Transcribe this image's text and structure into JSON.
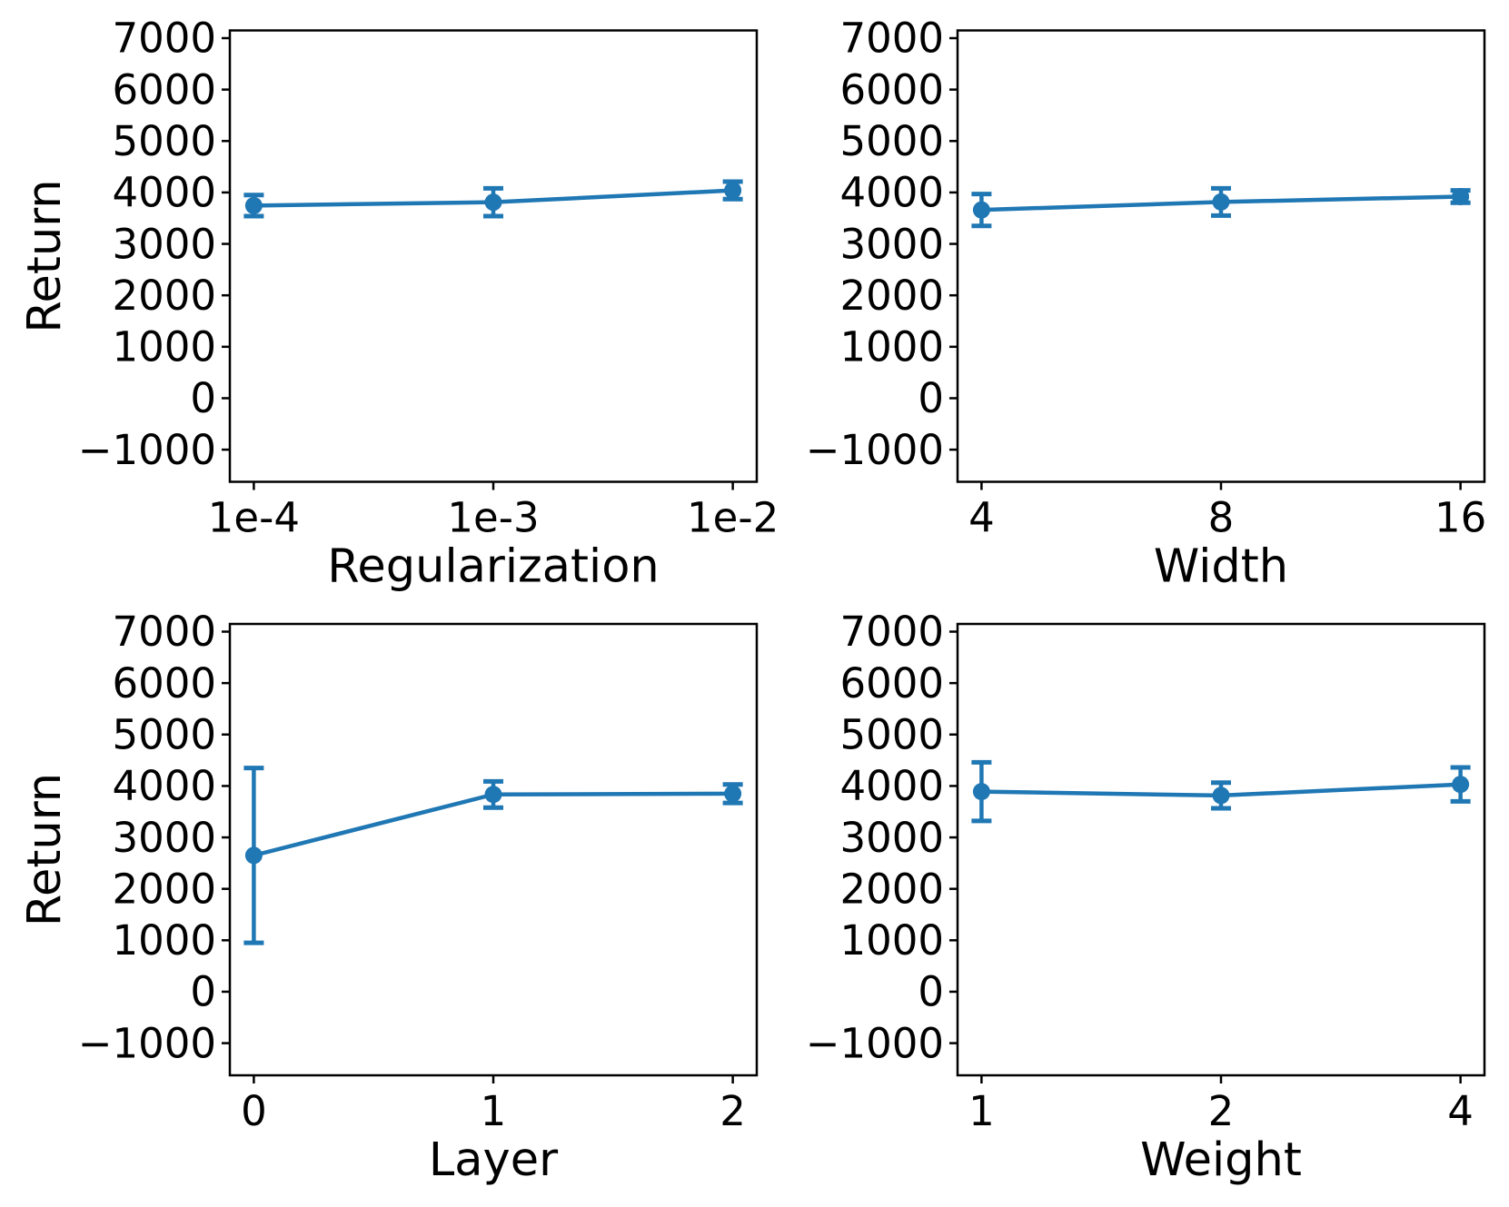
{
  "figure": {
    "background": "#ffffff",
    "accent_color": "#1f77b4",
    "text_color": "#000000",
    "ylabel": "Return"
  },
  "chart_data": [
    {
      "type": "line",
      "title": "",
      "xlabel": "Regularization",
      "ylabel": "Return",
      "categories": [
        "1e-4",
        "1e-3",
        "1e-2"
      ],
      "values": [
        3745,
        3810,
        4040
      ],
      "yerr": [
        205,
        270,
        170
      ],
      "yticks": [
        -1000,
        0,
        1000,
        2000,
        3000,
        4000,
        5000,
        6000,
        7000
      ],
      "ylim": [
        -1625,
        7150
      ],
      "grid": false,
      "legend": null,
      "line_color": "#1f77b4",
      "marker": "circle"
    },
    {
      "type": "line",
      "title": "",
      "xlabel": "Width",
      "ylabel": "",
      "categories": [
        "4",
        "8",
        "16"
      ],
      "values": [
        3660,
        3815,
        3920
      ],
      "yerr": [
        310,
        265,
        120
      ],
      "yticks": [
        -1000,
        0,
        1000,
        2000,
        3000,
        4000,
        5000,
        6000,
        7000
      ],
      "ylim": [
        -1625,
        7150
      ],
      "grid": false,
      "legend": null,
      "line_color": "#1f77b4",
      "marker": "circle"
    },
    {
      "type": "line",
      "title": "",
      "xlabel": "Layer",
      "ylabel": "Return",
      "categories": [
        "0",
        "1",
        "2"
      ],
      "values": [
        2650,
        3835,
        3850
      ],
      "yerr": [
        1700,
        255,
        180
      ],
      "yticks": [
        -1000,
        0,
        1000,
        2000,
        3000,
        4000,
        5000,
        6000,
        7000
      ],
      "ylim": [
        -1625,
        7150
      ],
      "grid": false,
      "legend": null,
      "line_color": "#1f77b4",
      "marker": "circle"
    },
    {
      "type": "line",
      "title": "",
      "xlabel": "Weight",
      "ylabel": "",
      "categories": [
        "1",
        "2",
        "4"
      ],
      "values": [
        3890,
        3815,
        4030
      ],
      "yerr": [
        570,
        250,
        330
      ],
      "yticks": [
        -1000,
        0,
        1000,
        2000,
        3000,
        4000,
        5000,
        6000,
        7000
      ],
      "ylim": [
        -1625,
        7150
      ],
      "grid": false,
      "legend": null,
      "line_color": "#1f77b4",
      "marker": "circle"
    }
  ]
}
